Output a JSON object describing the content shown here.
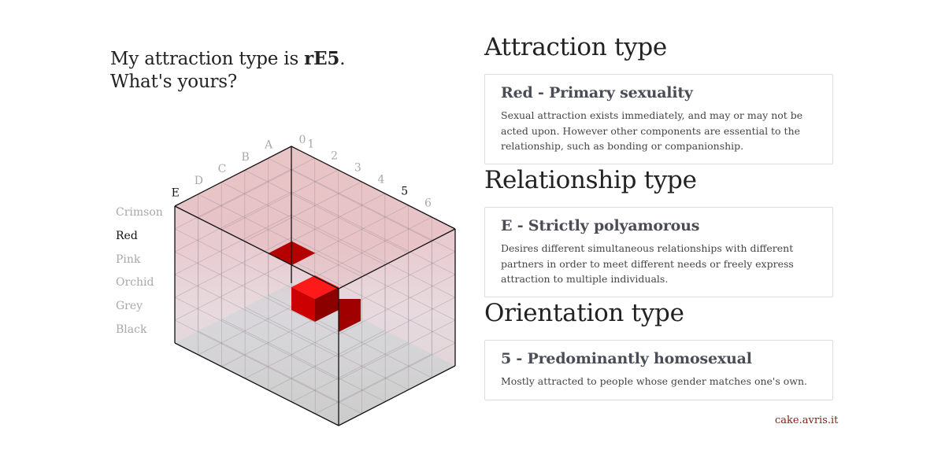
{
  "headline": {
    "line1_prefix": "My attraction type is ",
    "code": "rE5",
    "line1_suffix": ".",
    "line2": "What's yours?"
  },
  "cube": {
    "letters": [
      "A",
      "B",
      "C",
      "D",
      "E"
    ],
    "numbers": [
      "0",
      "1",
      "2",
      "3",
      "4",
      "5",
      "6"
    ],
    "active_letter": "E",
    "active_number": "5",
    "colors": [
      "Crimson",
      "Red",
      "Pink",
      "Orchid",
      "Grey",
      "Black"
    ],
    "active_color": "Red",
    "highlight_color": "#cc0000",
    "label_color": "#a8a8a8",
    "active_label_color": "#111111"
  },
  "sections": [
    {
      "heading": "Attraction type",
      "title": "Red - Primary sexuality",
      "description": "Sexual attraction exists immediately, and may or may not be acted upon. However other components are essential to the relationship, such as bonding or companionship."
    },
    {
      "heading": "Relationship type",
      "title": "E - Strictly polyamorous",
      "description": "Desires different simultaneous relationships with different partners in order to meet different needs or freely express attraction to multiple individuals."
    },
    {
      "heading": "Orientation type",
      "title": "5 - Predominantly homosexual",
      "description": "Mostly attracted to people whose gender matches one's own."
    }
  ],
  "footer": {
    "link": "cake.avris.it",
    "link_color": "#8b1a1a"
  }
}
